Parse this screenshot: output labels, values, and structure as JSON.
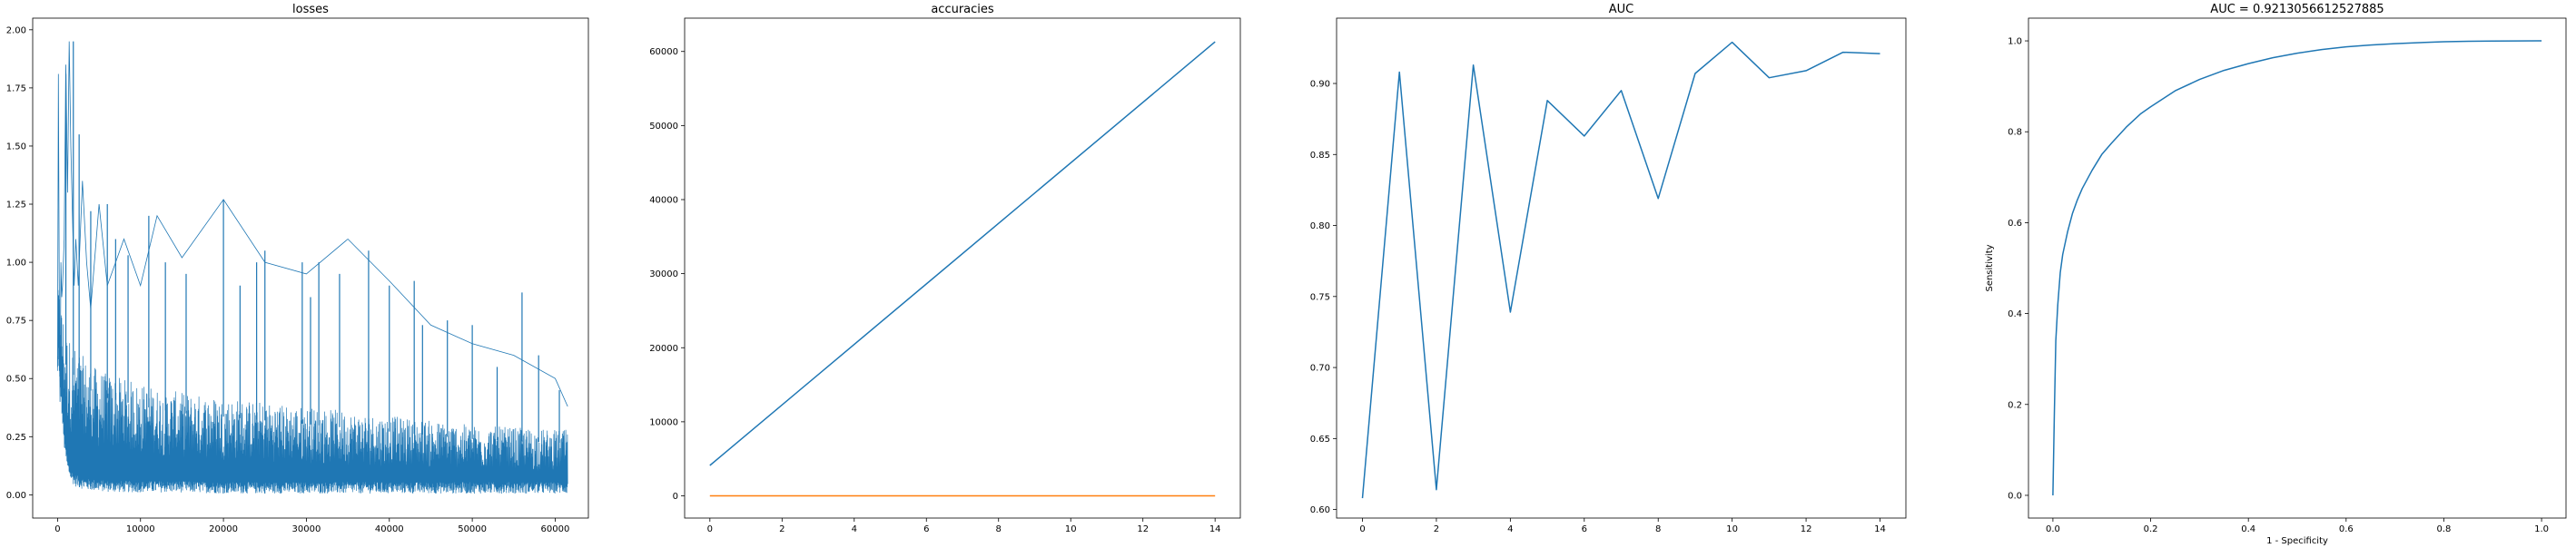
{
  "colors": {
    "series1": "#1f77b4",
    "series2": "#ff7f0e"
  },
  "chart_data": [
    {
      "type": "line",
      "title": "losses",
      "xlabel": "",
      "ylabel": "",
      "xlim": [
        -3000,
        64000
      ],
      "ylim": [
        -0.1,
        2.05
      ],
      "xticks": [
        0,
        10000,
        20000,
        30000,
        40000,
        50000,
        60000
      ],
      "xtick_labels": [
        "0",
        "10000",
        "20000",
        "30000",
        "40000",
        "50000",
        "60000"
      ],
      "yticks": [
        0.0,
        0.25,
        0.5,
        0.75,
        1.0,
        1.25,
        1.5,
        1.75,
        2.0
      ],
      "ytick_labels": [
        "0.00",
        "0.25",
        "0.50",
        "0.75",
        "1.00",
        "1.25",
        "1.50",
        "1.75",
        "2.00"
      ],
      "grid": false,
      "legend": null,
      "series": [
        {
          "x": [
            0,
            100,
            200,
            300,
            400,
            500,
            600,
            800,
            1000,
            1200,
            1400,
            1600,
            1800,
            2000,
            2200,
            2500,
            3000,
            3500,
            4000,
            5000,
            6000,
            8000,
            10000,
            12000,
            15000,
            20000,
            25000,
            30000,
            35000,
            40000,
            45000,
            50000,
            55000,
            60000,
            61500
          ],
          "y": [
            0.55,
            1.81,
            0.95,
            0.4,
            1.0,
            0.85,
            0.9,
            1.1,
            1.85,
            1.3,
            1.95,
            1.5,
            1.2,
            0.9,
            1.1,
            0.9,
            1.35,
            1.0,
            0.8,
            1.25,
            0.9,
            1.1,
            0.9,
            1.2,
            1.02,
            1.27,
            1.0,
            0.95,
            1.1,
            0.92,
            0.73,
            0.65,
            0.6,
            0.5,
            0.38
          ],
          "y_low": [
            0.5,
            0.6,
            0.5,
            0.45,
            0.42,
            0.35,
            0.3,
            0.2,
            0.15,
            0.1,
            0.08,
            0.06,
            0.05,
            0.04,
            0.035,
            0.03,
            0.025,
            0.02,
            0.018,
            0.015,
            0.012,
            0.01,
            0.01,
            0.01,
            0.01,
            0.005,
            0.005,
            0.005,
            0.005,
            0.005,
            0.005,
            0.005,
            0.005,
            0.005,
            0.005
          ],
          "y_typical_top": [
            0.55,
            0.95,
            0.9,
            0.85,
            0.85,
            0.8,
            0.8,
            0.75,
            0.7,
            0.7,
            0.68,
            0.66,
            0.65,
            0.64,
            0.63,
            0.62,
            0.6,
            0.58,
            0.56,
            0.54,
            0.52,
            0.5,
            0.48,
            0.46,
            0.44,
            0.42,
            0.4,
            0.38,
            0.36,
            0.34,
            0.32,
            0.3,
            0.29,
            0.28,
            0.28
          ],
          "spikes": [
            [
              1000,
              1.81
            ],
            [
              1900,
              1.95
            ],
            [
              2600,
              1.55
            ],
            [
              4000,
              1.22
            ],
            [
              6000,
              1.25
            ],
            [
              7000,
              1.1
            ],
            [
              8500,
              1.03
            ],
            [
              11000,
              1.2
            ],
            [
              13000,
              1.0
            ],
            [
              15500,
              0.95
            ],
            [
              20000,
              1.27
            ],
            [
              22000,
              0.9
            ],
            [
              24000,
              1.0
            ],
            [
              25000,
              1.05
            ],
            [
              29500,
              1.0
            ],
            [
              30500,
              0.85
            ],
            [
              31500,
              1.0
            ],
            [
              34000,
              0.95
            ],
            [
              37500,
              1.05
            ],
            [
              40000,
              0.9
            ],
            [
              43000,
              0.92
            ],
            [
              44000,
              0.73
            ],
            [
              47000,
              0.75
            ],
            [
              50000,
              0.73
            ],
            [
              53000,
              0.55
            ],
            [
              56000,
              0.87
            ],
            [
              58000,
              0.6
            ],
            [
              60500,
              0.45
            ]
          ]
        }
      ]
    },
    {
      "type": "line",
      "title": "accuracies",
      "xlabel": "",
      "ylabel": "",
      "xlim": [
        -0.7,
        14.7
      ],
      "ylim": [
        -3000,
        64500
      ],
      "xticks": [
        0,
        2,
        4,
        6,
        8,
        10,
        12,
        14
      ],
      "xtick_labels": [
        "0",
        "2",
        "4",
        "6",
        "8",
        "10",
        "12",
        "14"
      ],
      "yticks": [
        0,
        10000,
        20000,
        30000,
        40000,
        50000,
        60000
      ],
      "ytick_labels": [
        "0",
        "10000",
        "20000",
        "30000",
        "40000",
        "50000",
        "60000"
      ],
      "grid": false,
      "legend": null,
      "series": [
        {
          "x": [
            0,
            14
          ],
          "y": [
            4100,
            61300
          ]
        },
        {
          "x": [
            0,
            14
          ],
          "y": [
            0,
            0
          ]
        }
      ]
    },
    {
      "type": "line",
      "title": "AUC",
      "xlabel": "",
      "ylabel": "",
      "xlim": [
        -0.7,
        14.7
      ],
      "ylim": [
        0.594,
        0.946
      ],
      "xticks": [
        0,
        2,
        4,
        6,
        8,
        10,
        12,
        14
      ],
      "xtick_labels": [
        "0",
        "2",
        "4",
        "6",
        "8",
        "10",
        "12",
        "14"
      ],
      "yticks": [
        0.6,
        0.65,
        0.7,
        0.75,
        0.8,
        0.85,
        0.9
      ],
      "ytick_labels": [
        "0.60",
        "0.65",
        "0.70",
        "0.75",
        "0.80",
        "0.85",
        "0.90"
      ],
      "grid": false,
      "legend": null,
      "series": [
        {
          "x": [
            0,
            1,
            2,
            3,
            4,
            5,
            6,
            7,
            8,
            9,
            10,
            11,
            12,
            13,
            14
          ],
          "y": [
            0.608,
            0.908,
            0.614,
            0.913,
            0.739,
            0.888,
            0.863,
            0.895,
            0.819,
            0.907,
            0.929,
            0.904,
            0.909,
            0.922,
            0.921
          ]
        }
      ]
    },
    {
      "type": "line",
      "title": "AUC = 0.9213056612527885",
      "xlabel": "1 - Specificity",
      "ylabel": "Sensitivity",
      "xlim": [
        -0.05,
        1.05
      ],
      "ylim": [
        -0.05,
        1.05
      ],
      "xticks": [
        0.0,
        0.2,
        0.4,
        0.6,
        0.8,
        1.0
      ],
      "xtick_labels": [
        "0.0",
        "0.2",
        "0.4",
        "0.6",
        "0.8",
        "1.0"
      ],
      "yticks": [
        0.0,
        0.2,
        0.4,
        0.6,
        0.8,
        1.0
      ],
      "ytick_labels": [
        "0.0",
        "0.2",
        "0.4",
        "0.6",
        "0.8",
        "1.0"
      ],
      "grid": false,
      "legend": null,
      "series": [
        {
          "x": [
            0,
            0.003,
            0.006,
            0.01,
            0.015,
            0.02,
            0.03,
            0.04,
            0.05,
            0.06,
            0.08,
            0.1,
            0.12,
            0.15,
            0.18,
            0.2,
            0.25,
            0.3,
            0.35,
            0.4,
            0.45,
            0.5,
            0.55,
            0.6,
            0.65,
            0.7,
            0.75,
            0.8,
            0.85,
            0.9,
            0.95,
            1.0
          ],
          "y": [
            0,
            0.18,
            0.34,
            0.42,
            0.49,
            0.53,
            0.58,
            0.62,
            0.65,
            0.675,
            0.715,
            0.75,
            0.775,
            0.81,
            0.84,
            0.855,
            0.89,
            0.915,
            0.935,
            0.95,
            0.963,
            0.973,
            0.981,
            0.987,
            0.991,
            0.994,
            0.996,
            0.998,
            0.999,
            0.9995,
            0.9998,
            1.0
          ]
        }
      ]
    }
  ]
}
